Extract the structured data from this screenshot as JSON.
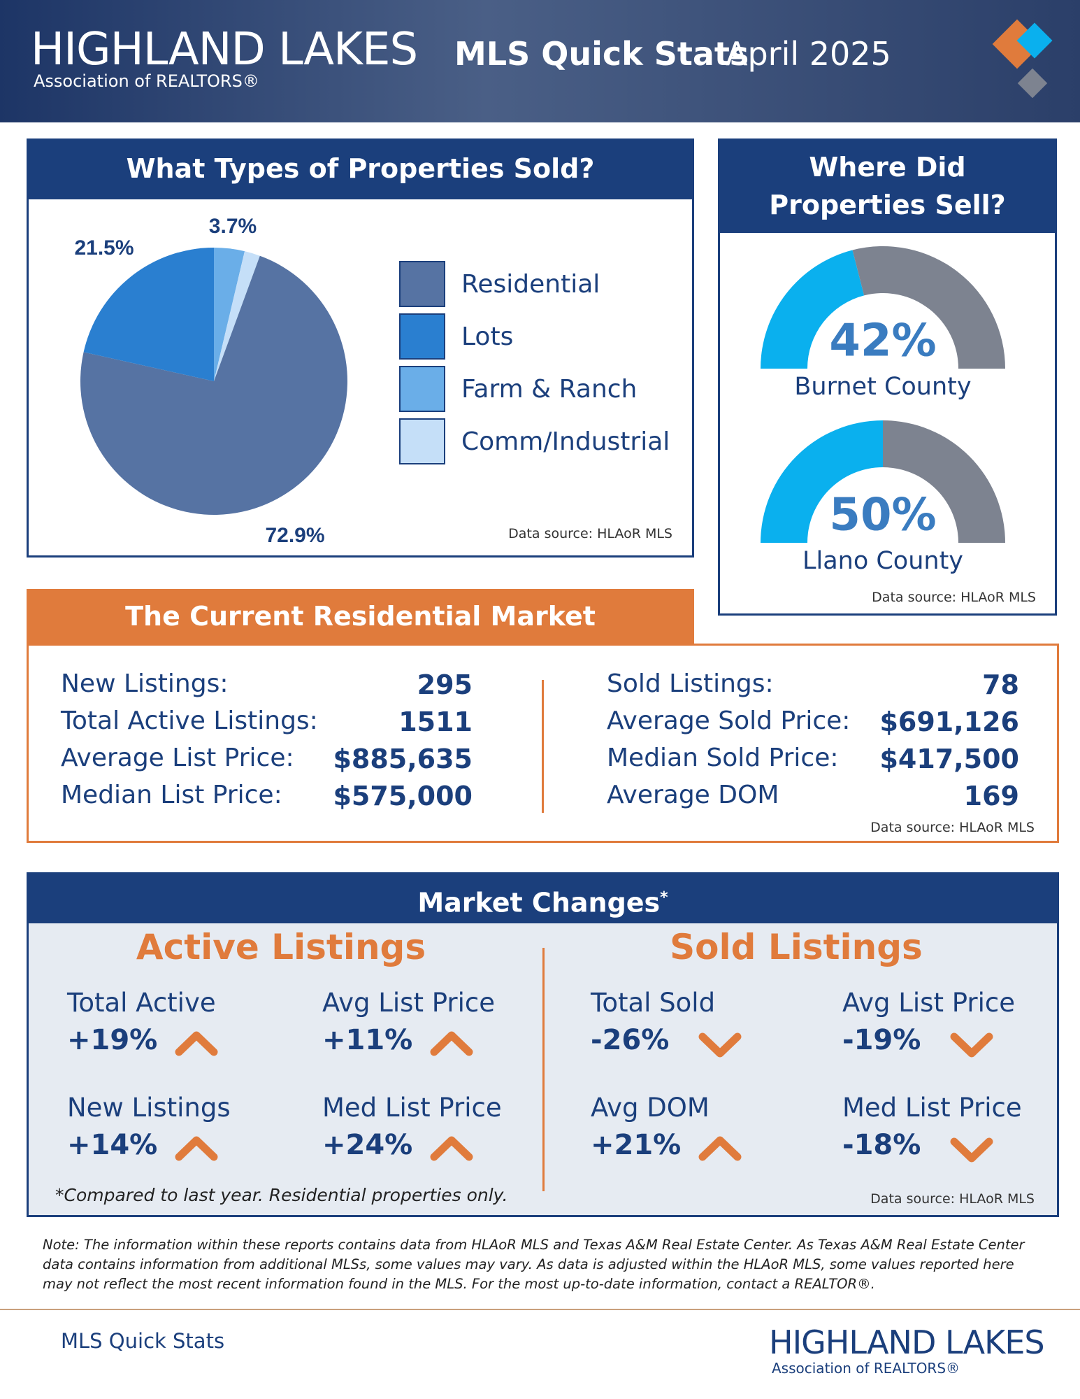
{
  "header": {
    "logo_name": "HIGHLAND LAKES",
    "logo_sub": "Association of REALTORS®",
    "title": "MLS Quick Stats",
    "period": "April 2025"
  },
  "chart_data": {
    "type": "pie",
    "title": "What Types of Properties Sold?",
    "categories": [
      "Residential",
      "Lots",
      "Farm & Ranch",
      "Comm/Industrial"
    ],
    "values": [
      72.9,
      21.5,
      3.7,
      1.9
    ],
    "value_labels": [
      "72.9%",
      "21.5%",
      "3.7%",
      null
    ],
    "colors": [
      "#5673a3",
      "#2a7fd0",
      "#6aaee8",
      "#c5dff8"
    ],
    "legend": "right",
    "source": "Data source: HLAoR MLS"
  },
  "where_sold": {
    "title": "Where Did Properties Sell?",
    "gauges": [
      {
        "value": 42,
        "label": "42%",
        "county": "Burnet County"
      },
      {
        "value": 50,
        "label": "50%",
        "county": "Llano County"
      }
    ],
    "colors": [
      "#0ab0ee",
      "#7d8390"
    ],
    "source": "Data source: HLAoR MLS"
  },
  "residential_market": {
    "title": "The Current Residential Market",
    "left": [
      {
        "label": "New Listings:",
        "value": "295"
      },
      {
        "label": "Total Active Listings:",
        "value": "1511"
      },
      {
        "label": "Average List Price:",
        "value": "$885,635"
      },
      {
        "label": "Median List Price:",
        "value": "$575,000"
      }
    ],
    "right": [
      {
        "label": "Sold Listings:",
        "value": "78"
      },
      {
        "label": "Average Sold Price:",
        "value": "$691,126"
      },
      {
        "label": "Median Sold Price:",
        "value": "$417,500"
      },
      {
        "label": "Average DOM",
        "value": "169"
      }
    ],
    "source": "Data source: HLAoR MLS"
  },
  "market_changes": {
    "title": "Market Changes",
    "title_mark": "*",
    "groups": [
      {
        "title": "Active Listings",
        "items": [
          {
            "label": "Total Active",
            "change": "+19%",
            "direction": "up"
          },
          {
            "label": "Avg List Price",
            "change": "+11%",
            "direction": "up"
          },
          {
            "label": "New Listings",
            "change": "+14%",
            "direction": "up"
          },
          {
            "label": "Med List Price",
            "change": "+24%",
            "direction": "up"
          }
        ]
      },
      {
        "title": "Sold Listings",
        "items": [
          {
            "label": "Total Sold",
            "change": "-26%",
            "direction": "down"
          },
          {
            "label": "Avg List Price",
            "change": "-19%",
            "direction": "down"
          },
          {
            "label": "Avg DOM",
            "change": "+21%",
            "direction": "up"
          },
          {
            "label": "Med List Price",
            "change": "-18%",
            "direction": "down"
          }
        ]
      }
    ],
    "footnote": "*Compared to last year. Residential properties only.",
    "source": "Data source: HLAoR MLS"
  },
  "note": "Note: The information within these reports contains data from HLAoR MLS and Texas A&M Real Estate Center. As Texas A&M Real Estate Center data contains information from additional MLSs, some values may vary. As data is adjusted within the HLAoR MLS, some values reported here may not reflect the most recent information found in the MLS. For the most up-to-date information, contact a REALTOR®.",
  "footer": {
    "label": "MLS Quick Stats",
    "logo_name": "HIGHLAND LAKES",
    "logo_sub": "Association of REALTORS®"
  }
}
